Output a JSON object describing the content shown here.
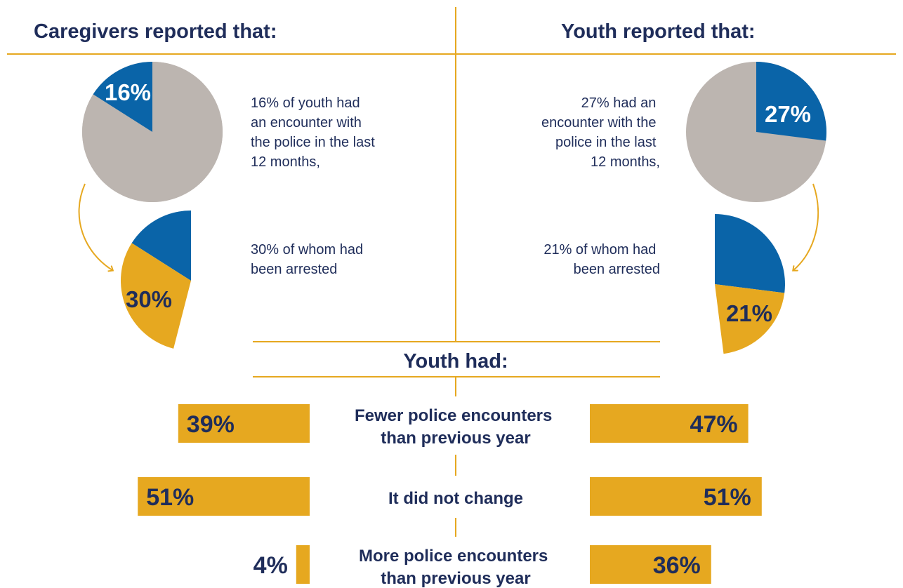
{
  "headings": {
    "left": "Caregivers reported that:",
    "right": "Youth reported that:",
    "center": "Youth had:"
  },
  "caregivers": {
    "encounter_text": [
      "16% of youth had",
      "an encounter with",
      "the police in the last",
      "12 months,"
    ],
    "arrest_text": [
      "30% of whom had",
      "been arrested"
    ]
  },
  "youth": {
    "encounter_text": [
      "27% had an",
      "encounter with the",
      "police in the last",
      "12 months,"
    ],
    "arrest_text": [
      "21% of whom had",
      "been arrested"
    ]
  },
  "colors": {
    "navy": "#1f2d5a",
    "blue": "#0a64a8",
    "gold": "#e6a820",
    "gray": "#bcb5b0",
    "white": "#ffffff"
  },
  "chart_data": [
    {
      "type": "pie",
      "id": "caregiver-encounter",
      "slices": [
        {
          "label": "16%",
          "value": 16,
          "color": "#0a64a8"
        },
        {
          "label": "",
          "value": 84,
          "color": "#bcb5b0"
        }
      ]
    },
    {
      "type": "pie",
      "id": "caregiver-arrest",
      "slices": [
        {
          "label": "",
          "value": 16,
          "color": "#0a64a8"
        },
        {
          "label": "30%",
          "value": 30,
          "color": "#e6a820"
        }
      ]
    },
    {
      "type": "pie",
      "id": "youth-encounter",
      "slices": [
        {
          "label": "27%",
          "value": 27,
          "color": "#0a64a8"
        },
        {
          "label": "",
          "value": 73,
          "color": "#bcb5b0"
        }
      ]
    },
    {
      "type": "pie",
      "id": "youth-arrest",
      "slices": [
        {
          "label": "",
          "value": 27,
          "color": "#0a64a8"
        },
        {
          "label": "21%",
          "value": 21,
          "color": "#e6a820"
        }
      ]
    },
    {
      "type": "bar",
      "id": "encounter-change",
      "categories": [
        [
          "Fewer police encounters",
          "than previous year"
        ],
        [
          "It did not change"
        ],
        [
          "More police encounters",
          "than previous year"
        ]
      ],
      "series": [
        {
          "name": "Caregivers",
          "values": [
            39,
            51,
            4
          ],
          "labels": [
            "39%",
            "51%",
            "4%"
          ]
        },
        {
          "name": "Youth",
          "values": [
            47,
            51,
            36
          ],
          "labels": [
            "47%",
            "51%",
            "36%"
          ]
        }
      ]
    }
  ]
}
